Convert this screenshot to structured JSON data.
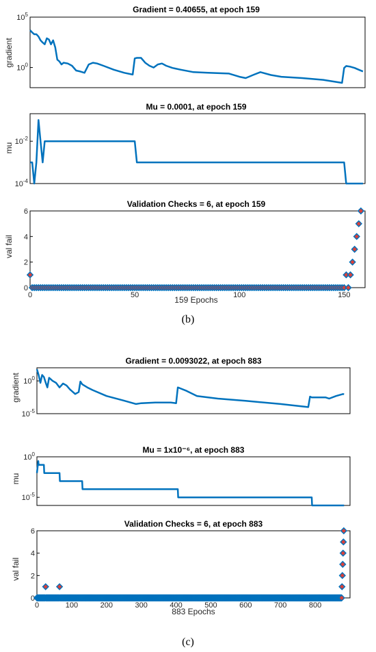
{
  "colors": {
    "line": "#0072BD",
    "marker_fill": "#D9413A",
    "marker_edge": "#0072BD",
    "axes": "#000000",
    "background": "#ffffff"
  },
  "captions": {
    "b": "(b)",
    "c": "(c)"
  },
  "chart_data": [
    {
      "type": "line",
      "title": "Gradient = 0.40655, at epoch 159",
      "ylabel": "gradient",
      "xlabel": "",
      "yscale": "log",
      "xlim": [
        0,
        160
      ],
      "ylim": [
        0.01,
        100000
      ],
      "yticks": [
        1,
        100000
      ],
      "ytick_labels": [
        {
          "base": "10",
          "exp": "0"
        },
        {
          "base": "10",
          "exp": "5"
        }
      ],
      "xticks": [],
      "x": [
        0,
        1,
        2,
        3,
        4,
        5,
        6,
        7,
        8,
        9,
        10,
        11,
        12,
        13,
        14,
        15,
        16,
        18,
        20,
        22,
        24,
        26,
        28,
        30,
        32,
        35,
        40,
        45,
        49,
        50,
        51,
        53,
        55,
        57,
        59,
        61,
        63,
        65,
        68,
        72,
        78,
        85,
        95,
        100,
        103,
        107,
        110,
        115,
        120,
        130,
        140,
        149,
        150,
        151,
        153,
        155,
        157,
        159
      ],
      "y": [
        5000,
        3000,
        2000,
        2000,
        1200,
        500,
        300,
        200,
        800,
        600,
        200,
        500,
        100,
        6,
        4,
        2,
        3,
        2.5,
        1.5,
        0.5,
        0.4,
        0.3,
        2,
        3,
        2.5,
        1.5,
        0.6,
        0.3,
        0.2,
        8,
        9,
        9,
        3,
        1.5,
        1,
        2,
        2.5,
        1.5,
        0.9,
        0.6,
        0.35,
        0.3,
        0.25,
        0.12,
        0.09,
        0.2,
        0.35,
        0.18,
        0.12,
        0.09,
        0.06,
        0.03,
        0.9,
        1.4,
        1.2,
        0.9,
        0.6,
        0.40655
      ]
    },
    {
      "type": "line",
      "title": "Mu = 0.0001, at epoch 159",
      "ylabel": "mu",
      "xlabel": "",
      "yscale": "log",
      "xlim": [
        0,
        160
      ],
      "ylim": [
        0.0001,
        0.2
      ],
      "yticks": [
        0.0001,
        0.01
      ],
      "ytick_labels": [
        {
          "base": "10",
          "exp": "-4"
        },
        {
          "base": "10",
          "exp": "-2"
        }
      ],
      "xticks": [],
      "x": [
        0,
        1,
        2,
        3,
        4,
        5,
        6,
        7,
        8,
        49,
        50,
        51,
        52,
        150,
        151,
        152,
        159
      ],
      "y": [
        0.001,
        0.001,
        0.0001,
        0.001,
        0.1,
        0.01,
        0.001,
        0.01,
        0.01,
        0.01,
        0.01,
        0.001,
        0.001,
        0.001,
        0.0001,
        0.0001,
        0.0001
      ]
    },
    {
      "type": "scatter",
      "title": "Validation Checks = 6, at epoch 159",
      "ylabel": "val fail",
      "xlabel": "159 Epochs",
      "xlim": [
        0,
        160
      ],
      "ylim": [
        0,
        6
      ],
      "yticks": [
        0,
        2,
        4,
        6
      ],
      "ytick_labels": [
        "0",
        "2",
        "4",
        "6"
      ],
      "xticks": [
        0,
        50,
        100,
        150
      ],
      "xtick_labels": [
        "0",
        "50",
        "100",
        "150"
      ],
      "epochs": 159,
      "nonzero_points": [
        [
          0,
          1
        ],
        [
          151,
          1
        ],
        [
          153,
          1
        ],
        [
          154,
          2
        ],
        [
          155,
          3
        ],
        [
          156,
          4
        ],
        [
          157,
          5
        ],
        [
          158,
          6
        ]
      ]
    },
    {
      "type": "line",
      "title": "Gradient = 0.0093022, at epoch 883",
      "ylabel": "gradient",
      "xlabel": "",
      "yscale": "log",
      "xlim": [
        0,
        900
      ],
      "ylim": [
        1e-05,
        100
      ],
      "yticks": [
        1e-05,
        1
      ],
      "ytick_labels": [
        {
          "base": "10",
          "exp": "-5"
        },
        {
          "base": "10",
          "exp": "0"
        }
      ],
      "xticks": [],
      "x": [
        0,
        5,
        10,
        15,
        20,
        25,
        30,
        35,
        45,
        55,
        65,
        75,
        85,
        95,
        110,
        120,
        125,
        130,
        145,
        160,
        200,
        250,
        285,
        300,
        340,
        385,
        400,
        405,
        410,
        430,
        460,
        520,
        600,
        700,
        780,
        785,
        790,
        830,
        840,
        860,
        880,
        883
      ],
      "y": [
        60,
        8,
        0.5,
        8,
        4,
        0.6,
        0.1,
        3,
        1,
        0.5,
        0.1,
        0.4,
        0.2,
        0.05,
        0.01,
        0.02,
        0.8,
        0.3,
        0.1,
        0.04,
        0.005,
        0.001,
        0.0003,
        0.0004,
        0.0005,
        0.0005,
        0.0004,
        0.1,
        0.08,
        0.03,
        0.005,
        0.002,
        0.0009,
        0.0003,
        0.0001,
        0.004,
        0.003,
        0.003,
        0.002,
        0.005,
        0.01,
        0.0093022
      ]
    },
    {
      "type": "line",
      "title": "Mu = 1x10⁻⁶, at epoch 883",
      "ylabel": "mu",
      "xlabel": "",
      "yscale": "log",
      "xlim": [
        0,
        900
      ],
      "ylim": [
        1e-06,
        1
      ],
      "yticks": [
        1e-05,
        1
      ],
      "ytick_labels": [
        {
          "base": "10",
          "exp": "-5"
        },
        {
          "base": "10",
          "exp": "0"
        }
      ],
      "xticks": [],
      "x": [
        0,
        4,
        5,
        20,
        21,
        65,
        66,
        130,
        131,
        405,
        406,
        790,
        791,
        883
      ],
      "y": [
        0.01,
        0.3,
        0.1,
        0.1,
        0.01,
        0.01,
        0.001,
        0.001,
        0.0001,
        0.0001,
        1e-05,
        1e-05,
        1e-06,
        1e-06
      ]
    },
    {
      "type": "scatter",
      "title": "Validation Checks = 6, at epoch 883",
      "ylabel": "val fail",
      "xlabel": "883 Epochs",
      "xlim": [
        0,
        900
      ],
      "ylim": [
        0,
        6
      ],
      "yticks": [
        0,
        2,
        4,
        6
      ],
      "ytick_labels": [
        "0",
        "2",
        "4",
        "6"
      ],
      "xticks": [
        0,
        100,
        200,
        300,
        400,
        500,
        600,
        700,
        800
      ],
      "xtick_labels": [
        "0",
        "100",
        "200",
        "300",
        "400",
        "500",
        "600",
        "700",
        "800"
      ],
      "epochs": 883,
      "nonzero_points": [
        [
          25,
          1
        ],
        [
          65,
          1
        ],
        [
          877,
          1
        ],
        [
          878,
          2
        ],
        [
          879,
          3
        ],
        [
          880,
          4
        ],
        [
          881,
          5
        ],
        [
          882,
          6
        ]
      ]
    }
  ]
}
